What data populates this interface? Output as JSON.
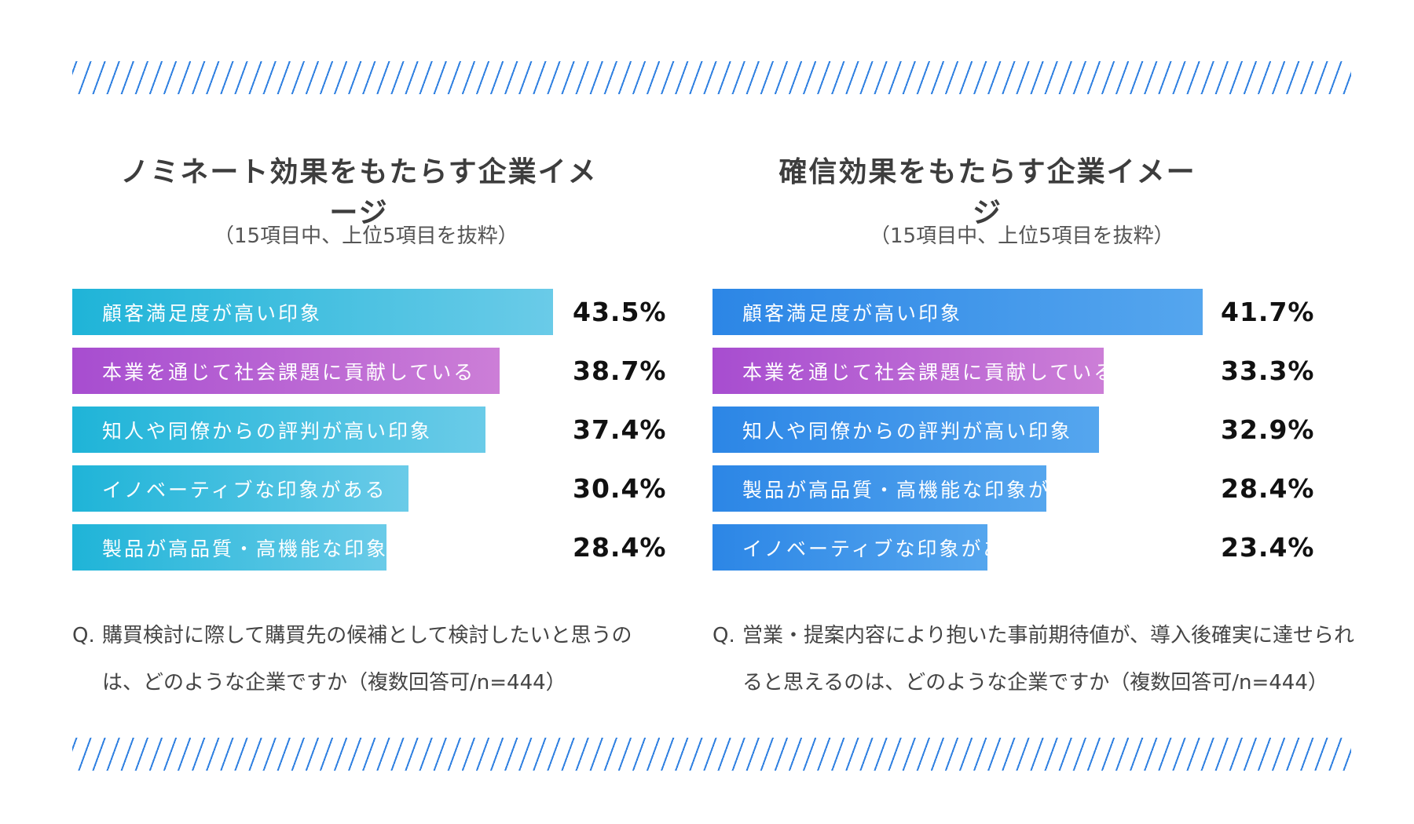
{
  "colors": {
    "stripe": "#2f80e1",
    "cyan_start": "#1fb4d8",
    "cyan_end": "#6acbe8",
    "purple_start": "#a74dd0",
    "purple_end": "#cc7ed7",
    "blue_start": "#2c86e6",
    "blue_end": "#55a6ee"
  },
  "left": {
    "title": "ノミネート効果をもたらす企業イメージ",
    "subtitle": "（15項目中、上位5項目を抜粋）",
    "question_prefix": "Q.",
    "question": "購買検討に際して購買先の候補として検討したいと思うのは、どのような企業ですか（複数回答可/n=444）"
  },
  "right": {
    "title": "確信効果をもたらす企業イメージ",
    "subtitle": "（15項目中、上位5項目を抜粋）",
    "question_prefix": "Q.",
    "question": "営業・提案内容により抱いた事前期待値が、導入後確実に達せられると思えるのは、どのような企業ですか（複数回答可/n=444）"
  },
  "chart_data": [
    {
      "type": "bar",
      "orientation": "horizontal",
      "title": "ノミネート効果をもたらす企業イメージ",
      "unit": "%",
      "categories": [
        "顧客満足度が高い印象",
        "本業を通じて社会課題に貢献している",
        "知人や同僚からの評判が高い印象",
        "イノベーティブな印象がある",
        "製品が高品質・高機能な印象がある"
      ],
      "values": [
        43.5,
        38.7,
        37.4,
        30.4,
        28.4
      ],
      "labels": [
        "43.5%",
        "38.7%",
        "37.4%",
        "30.4%",
        "28.4%"
      ],
      "bar_colors": [
        "cyan",
        "purple",
        "cyan",
        "cyan",
        "cyan"
      ],
      "xlim": [
        0,
        43.5
      ]
    },
    {
      "type": "bar",
      "orientation": "horizontal",
      "title": "確信効果をもたらす企業イメージ",
      "unit": "%",
      "categories": [
        "顧客満足度が高い印象",
        "本業を通じて社会課題に貢献している",
        "知人や同僚からの評判が高い印象",
        "製品が高品質・高機能な印象がある",
        "イノベーティブな印象がある"
      ],
      "values": [
        41.7,
        33.3,
        32.9,
        28.4,
        23.4
      ],
      "labels": [
        "41.7%",
        "33.3%",
        "32.9%",
        "28.4%",
        "23.4%"
      ],
      "bar_colors": [
        "blue",
        "purple",
        "blue",
        "blue",
        "blue"
      ],
      "xlim": [
        0,
        41.7
      ]
    }
  ]
}
